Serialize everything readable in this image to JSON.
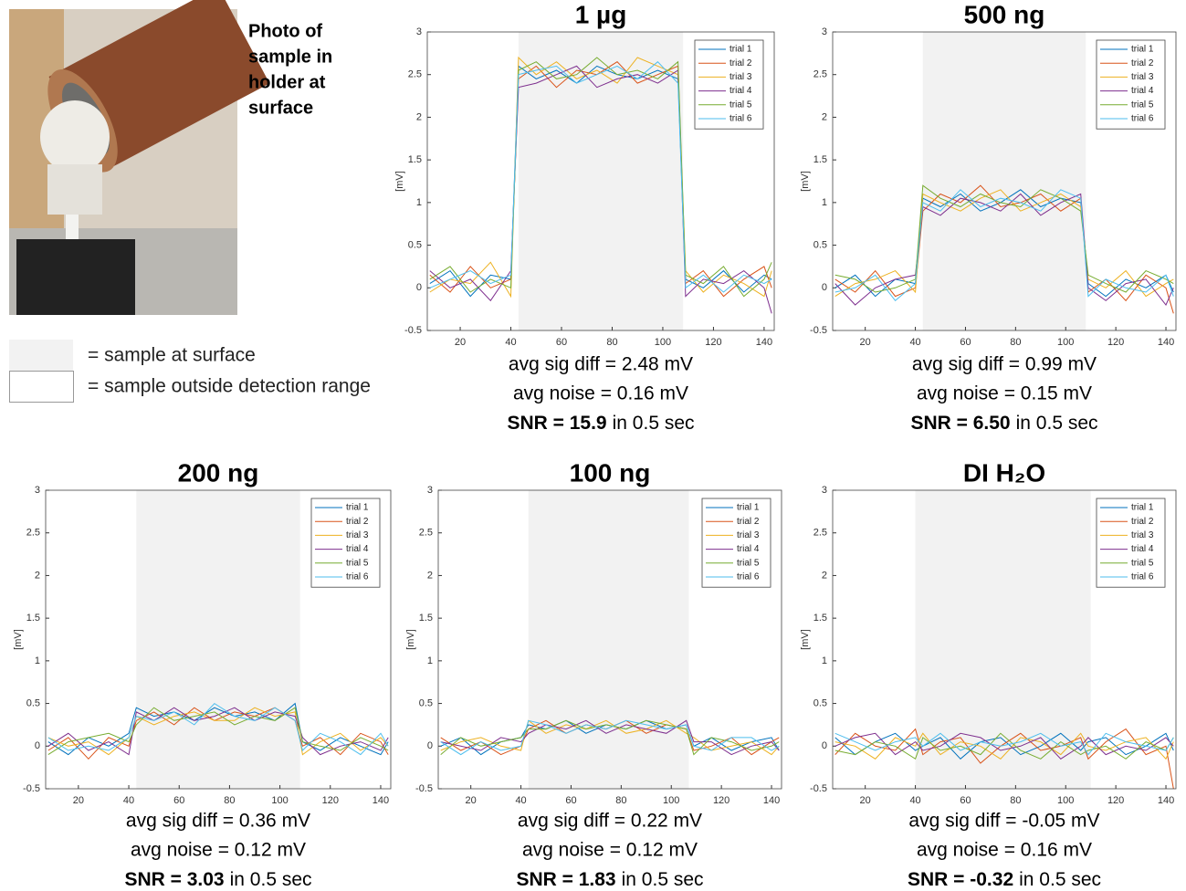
{
  "photo_caption": [
    "Photo of",
    "sample in",
    "holder at",
    "surface"
  ],
  "key": {
    "surface": "= sample at surface",
    "outside": "= sample outside detection range"
  },
  "chart_data": [
    {
      "type": "line",
      "title": "1 µg",
      "ylabel": "[mV]",
      "x": [
        8,
        16,
        24,
        32,
        40,
        43,
        50,
        58,
        66,
        74,
        82,
        90,
        98,
        106,
        109,
        116,
        124,
        132,
        140,
        143
      ],
      "shade": [
        43,
        108
      ],
      "xlim": [
        7,
        144
      ],
      "xticks": [
        20,
        40,
        60,
        80,
        100,
        120,
        140
      ],
      "ylim": [
        -0.5,
        3
      ],
      "yticks": [
        -0.5,
        0,
        0.5,
        1,
        1.5,
        2,
        2.5,
        3
      ],
      "legend": "upper right",
      "series": [
        {
          "name": "trial 1",
          "color": "#0072bd",
          "values": [
            0.05,
            0.2,
            -0.1,
            0.15,
            0.1,
            2.6,
            2.45,
            2.55,
            2.4,
            2.6,
            2.5,
            2.45,
            2.55,
            2.45,
            0.1,
            0.0,
            0.2,
            -0.05,
            0.15,
            0.1
          ]
        },
        {
          "name": "trial 2",
          "color": "#d95319",
          "values": [
            0.15,
            -0.05,
            0.25,
            0.0,
            0.1,
            2.45,
            2.6,
            2.35,
            2.55,
            2.5,
            2.65,
            2.4,
            2.5,
            2.6,
            0.05,
            0.2,
            -0.1,
            0.1,
            0.25,
            0.0
          ]
        },
        {
          "name": "trial 3",
          "color": "#edb120",
          "values": [
            -0.05,
            0.1,
            0.05,
            0.3,
            -0.1,
            2.7,
            2.5,
            2.65,
            2.45,
            2.55,
            2.4,
            2.7,
            2.6,
            2.5,
            0.2,
            -0.05,
            0.15,
            0.05,
            -0.1,
            0.2
          ]
        },
        {
          "name": "trial 4",
          "color": "#7e2f8e",
          "values": [
            0.2,
            0.0,
            0.1,
            -0.15,
            0.2,
            2.35,
            2.4,
            2.5,
            2.6,
            2.35,
            2.45,
            2.5,
            2.4,
            2.55,
            -0.1,
            0.1,
            0.05,
            0.2,
            0.0,
            -0.3
          ]
        },
        {
          "name": "trial 5",
          "color": "#77ac30",
          "values": [
            0.1,
            0.25,
            -0.05,
            0.1,
            0.0,
            2.55,
            2.65,
            2.45,
            2.5,
            2.7,
            2.5,
            2.55,
            2.45,
            2.65,
            0.15,
            0.05,
            0.25,
            -0.1,
            0.1,
            0.3
          ]
        },
        {
          "name": "trial 6",
          "color": "#4dbeee",
          "values": [
            0.0,
            0.1,
            0.2,
            0.05,
            0.15,
            2.5,
            2.55,
            2.6,
            2.4,
            2.5,
            2.6,
            2.45,
            2.65,
            2.4,
            0.0,
            0.15,
            -0.05,
            0.15,
            0.05,
            0.1
          ]
        }
      ],
      "stats": [
        "avg sig diff = 2.48 mV",
        "avg noise = 0.16 mV"
      ],
      "snr": "SNR = 15.9",
      "snr_rest": "in 0.5 sec"
    },
    {
      "type": "line",
      "title": "500 ng",
      "ylabel": "[mV]",
      "x": [
        8,
        16,
        24,
        32,
        40,
        43,
        50,
        58,
        66,
        74,
        82,
        90,
        98,
        106,
        109,
        116,
        124,
        132,
        140,
        143
      ],
      "shade": [
        43,
        108
      ],
      "xlim": [
        7,
        144
      ],
      "xticks": [
        20,
        40,
        60,
        80,
        100,
        120,
        140
      ],
      "ylim": [
        -0.5,
        3
      ],
      "yticks": [
        -0.5,
        0,
        0.5,
        1,
        1.5,
        2,
        2.5,
        3
      ],
      "legend": "upper right",
      "series": [
        {
          "name": "trial 1",
          "color": "#0072bd",
          "values": [
            0.0,
            0.15,
            -0.1,
            0.1,
            0.05,
            1.05,
            0.95,
            1.1,
            0.9,
            1.0,
            1.15,
            0.95,
            1.05,
            1.0,
            0.05,
            -0.1,
            0.1,
            0.0,
            0.15,
            -0.05
          ]
        },
        {
          "name": "trial 2",
          "color": "#d95319",
          "values": [
            0.1,
            -0.05,
            0.2,
            -0.1,
            0.0,
            0.9,
            1.1,
            1.0,
            1.2,
            0.95,
            1.0,
            1.1,
            0.9,
            1.05,
            -0.05,
            0.1,
            -0.15,
            0.15,
            0.0,
            -0.3
          ]
        },
        {
          "name": "trial 3",
          "color": "#edb120",
          "values": [
            -0.1,
            0.05,
            0.1,
            0.2,
            -0.05,
            1.1,
            1.0,
            0.9,
            1.05,
            1.15,
            0.9,
            1.0,
            1.1,
            0.95,
            0.1,
            0.0,
            0.2,
            -0.1,
            0.05,
            0.1
          ]
        },
        {
          "name": "trial 4",
          "color": "#7e2f8e",
          "values": [
            0.05,
            -0.2,
            0.0,
            0.1,
            0.15,
            0.95,
            0.85,
            1.05,
            1.0,
            0.9,
            1.1,
            0.85,
            1.0,
            1.1,
            0.0,
            -0.15,
            0.05,
            0.1,
            -0.2,
            0.0
          ]
        },
        {
          "name": "trial 5",
          "color": "#77ac30",
          "values": [
            0.15,
            0.1,
            -0.05,
            0.0,
            0.1,
            1.2,
            1.05,
            0.95,
            1.1,
            1.0,
            0.95,
            1.15,
            1.05,
            0.9,
            0.15,
            0.05,
            -0.05,
            0.2,
            0.1,
            0.05
          ]
        },
        {
          "name": "trial 6",
          "color": "#4dbeee",
          "values": [
            -0.05,
            0.0,
            0.15,
            -0.15,
            0.05,
            1.0,
            0.9,
            1.15,
            0.95,
            1.05,
            1.0,
            0.9,
            1.15,
            1.05,
            -0.1,
            0.1,
            0.0,
            -0.05,
            0.15,
            -0.1
          ]
        }
      ],
      "stats": [
        "avg sig diff = 0.99 mV",
        "avg noise = 0.15 mV"
      ],
      "snr": "SNR = 6.50",
      "snr_rest": "in 0.5 sec"
    },
    {
      "type": "line",
      "title": "200 ng",
      "ylabel": "[mV]",
      "x": [
        8,
        16,
        24,
        32,
        40,
        43,
        50,
        58,
        66,
        74,
        82,
        90,
        98,
        106,
        109,
        116,
        124,
        132,
        140,
        143
      ],
      "shade": [
        43,
        108
      ],
      "xlim": [
        7,
        144
      ],
      "xticks": [
        20,
        40,
        60,
        80,
        100,
        120,
        140
      ],
      "ylim": [
        -0.5,
        3
      ],
      "yticks": [
        -0.5,
        0,
        0.5,
        1,
        1.5,
        2,
        2.5,
        3
      ],
      "legend": "upper right",
      "series": [
        {
          "name": "trial 1",
          "color": "#0072bd",
          "values": [
            0.05,
            -0.1,
            0.1,
            0.0,
            0.15,
            0.45,
            0.35,
            0.4,
            0.3,
            0.45,
            0.35,
            0.4,
            0.3,
            0.5,
            0.05,
            -0.05,
            0.1,
            0.0,
            -0.1,
            0.05
          ]
        },
        {
          "name": "trial 2",
          "color": "#d95319",
          "values": [
            -0.05,
            0.1,
            -0.15,
            0.1,
            0.0,
            0.3,
            0.4,
            0.25,
            0.45,
            0.3,
            0.4,
            0.35,
            0.45,
            0.3,
            0.0,
            0.1,
            -0.1,
            0.15,
            0.05,
            -0.1
          ]
        },
        {
          "name": "trial 3",
          "color": "#edb120",
          "values": [
            0.1,
            0.0,
            0.05,
            -0.1,
            0.1,
            0.35,
            0.25,
            0.35,
            0.4,
            0.3,
            0.3,
            0.45,
            0.35,
            0.4,
            -0.1,
            0.05,
            0.15,
            -0.05,
            0.1,
            0.0
          ]
        },
        {
          "name": "trial 4",
          "color": "#7e2f8e",
          "values": [
            0.0,
            0.15,
            -0.05,
            0.05,
            -0.1,
            0.4,
            0.3,
            0.45,
            0.3,
            0.35,
            0.45,
            0.3,
            0.4,
            0.35,
            0.1,
            -0.1,
            0.0,
            0.05,
            -0.05,
            0.1
          ]
        },
        {
          "name": "trial 5",
          "color": "#77ac30",
          "values": [
            -0.1,
            0.05,
            0.1,
            0.15,
            0.05,
            0.25,
            0.45,
            0.3,
            0.35,
            0.4,
            0.25,
            0.35,
            0.3,
            0.45,
            0.05,
            0.0,
            -0.05,
            0.1,
            0.0,
            -0.05
          ]
        },
        {
          "name": "trial 6",
          "color": "#4dbeee",
          "values": [
            0.1,
            -0.05,
            0.0,
            -0.05,
            0.1,
            0.35,
            0.3,
            0.4,
            0.25,
            0.5,
            0.35,
            0.3,
            0.45,
            0.3,
            -0.05,
            0.15,
            0.05,
            -0.1,
            0.15,
            0.0
          ]
        }
      ],
      "stats": [
        "avg sig diff = 0.36 mV",
        "avg noise = 0.12 mV"
      ],
      "snr": "SNR = 3.03",
      "snr_rest": "in 0.5 sec"
    },
    {
      "type": "line",
      "title": "100 ng",
      "ylabel": "[mV]",
      "x": [
        8,
        16,
        24,
        32,
        40,
        43,
        50,
        58,
        66,
        74,
        82,
        90,
        98,
        106,
        109,
        116,
        124,
        132,
        140,
        143
      ],
      "shade": [
        43,
        107
      ],
      "xlim": [
        7,
        144
      ],
      "xticks": [
        20,
        40,
        60,
        80,
        100,
        120,
        140
      ],
      "ylim": [
        -0.5,
        3
      ],
      "yticks": [
        -0.5,
        0,
        0.5,
        1,
        1.5,
        2,
        2.5,
        3
      ],
      "legend": "upper right",
      "series": [
        {
          "name": "trial 1",
          "color": "#0072bd",
          "values": [
            0.0,
            0.1,
            -0.1,
            0.05,
            0.1,
            0.25,
            0.2,
            0.3,
            0.15,
            0.25,
            0.2,
            0.3,
            0.2,
            0.25,
            0.0,
            0.1,
            -0.05,
            0.05,
            0.1,
            -0.05
          ]
        },
        {
          "name": "trial 2",
          "color": "#d95319",
          "values": [
            0.1,
            -0.05,
            0.05,
            -0.1,
            0.0,
            0.2,
            0.3,
            0.15,
            0.25,
            0.2,
            0.3,
            0.15,
            0.25,
            0.2,
            -0.05,
            0.0,
            0.1,
            -0.1,
            0.05,
            0.1
          ]
        },
        {
          "name": "trial 3",
          "color": "#edb120",
          "values": [
            -0.05,
            0.05,
            0.1,
            0.0,
            -0.05,
            0.3,
            0.15,
            0.25,
            0.2,
            0.3,
            0.15,
            0.2,
            0.3,
            0.15,
            0.1,
            -0.05,
            0.0,
            0.05,
            -0.1,
            0.0
          ]
        },
        {
          "name": "trial 4",
          "color": "#7e2f8e",
          "values": [
            0.05,
            0.0,
            -0.05,
            0.1,
            0.05,
            0.15,
            0.25,
            0.2,
            0.3,
            0.15,
            0.25,
            0.2,
            0.15,
            0.3,
            0.05,
            0.05,
            -0.1,
            0.0,
            0.05,
            -0.05
          ]
        },
        {
          "name": "trial 5",
          "color": "#77ac30",
          "values": [
            -0.1,
            0.1,
            0.0,
            0.05,
            0.1,
            0.2,
            0.2,
            0.3,
            0.2,
            0.25,
            0.2,
            0.3,
            0.25,
            0.2,
            -0.1,
            0.1,
            0.05,
            -0.05,
            0.0,
            0.05
          ]
        },
        {
          "name": "trial 6",
          "color": "#4dbeee",
          "values": [
            0.05,
            -0.1,
            0.05,
            -0.05,
            0.0,
            0.3,
            0.25,
            0.15,
            0.25,
            0.2,
            0.3,
            0.25,
            0.2,
            0.25,
            0.0,
            -0.05,
            0.1,
            0.1,
            -0.05,
            0.0
          ]
        }
      ],
      "stats": [
        "avg sig diff = 0.22 mV",
        "avg noise = 0.12 mV"
      ],
      "snr": "SNR = 1.83",
      "snr_rest": "in 0.5 sec"
    },
    {
      "type": "line",
      "title": "DI H₂O",
      "ylabel": "[mV]",
      "x": [
        8,
        16,
        24,
        32,
        40,
        43,
        50,
        58,
        66,
        74,
        82,
        90,
        98,
        106,
        109,
        116,
        124,
        132,
        140,
        143
      ],
      "shade": [
        40,
        110
      ],
      "xlim": [
        7,
        144
      ],
      "xticks": [
        20,
        40,
        60,
        80,
        100,
        120,
        140
      ],
      "ylim": [
        -0.5,
        3
      ],
      "yticks": [
        -0.5,
        0,
        0.5,
        1,
        1.5,
        2,
        2.5,
        3
      ],
      "legend": "upper right",
      "series": [
        {
          "name": "trial 1",
          "color": "#0072bd",
          "values": [
            0.1,
            -0.1,
            0.05,
            0.15,
            -0.05,
            0.0,
            0.1,
            -0.15,
            0.05,
            0.1,
            -0.1,
            0.0,
            0.15,
            -0.05,
            0.05,
            0.1,
            -0.1,
            0.0,
            0.15,
            -0.05
          ]
        },
        {
          "name": "trial 2",
          "color": "#d95319",
          "values": [
            -0.1,
            0.15,
            0.0,
            -0.05,
            0.2,
            -0.1,
            0.05,
            0.1,
            -0.2,
            0.0,
            0.15,
            -0.05,
            0.0,
            0.1,
            -0.15,
            0.05,
            0.2,
            -0.1,
            0.0,
            -0.5
          ]
        },
        {
          "name": "trial 3",
          "color": "#edb120",
          "values": [
            0.05,
            0.0,
            -0.15,
            0.1,
            0.0,
            0.15,
            -0.1,
            0.05,
            0.0,
            -0.15,
            0.1,
            0.05,
            -0.1,
            0.15,
            0.0,
            -0.05,
            0.05,
            0.1,
            -0.15,
            0.05
          ]
        },
        {
          "name": "trial 4",
          "color": "#7e2f8e",
          "values": [
            0.0,
            0.1,
            0.15,
            -0.1,
            0.05,
            -0.05,
            0.0,
            0.15,
            0.1,
            -0.05,
            0.0,
            0.1,
            -0.15,
            0.0,
            0.1,
            -0.1,
            0.0,
            -0.05,
            0.1,
            0.0
          ]
        },
        {
          "name": "trial 5",
          "color": "#77ac30",
          "values": [
            -0.05,
            -0.1,
            0.05,
            0.0,
            -0.15,
            0.1,
            -0.05,
            0.0,
            -0.1,
            0.15,
            -0.05,
            -0.15,
            0.05,
            -0.1,
            -0.05,
            0.0,
            -0.15,
            0.05,
            -0.05,
            0.1
          ]
        },
        {
          "name": "trial 6",
          "color": "#4dbeee",
          "values": [
            0.15,
            0.05,
            -0.05,
            0.05,
            0.1,
            0.0,
            0.15,
            -0.05,
            0.05,
            0.0,
            0.05,
            0.15,
            0.0,
            0.05,
            -0.1,
            0.15,
            0.05,
            0.0,
            -0.05,
            0.1
          ]
        }
      ],
      "stats": [
        "avg sig diff = -0.05 mV",
        "avg noise = 0.16 mV"
      ],
      "snr": "SNR = -0.32",
      "snr_rest": "in 0.5 sec"
    }
  ]
}
